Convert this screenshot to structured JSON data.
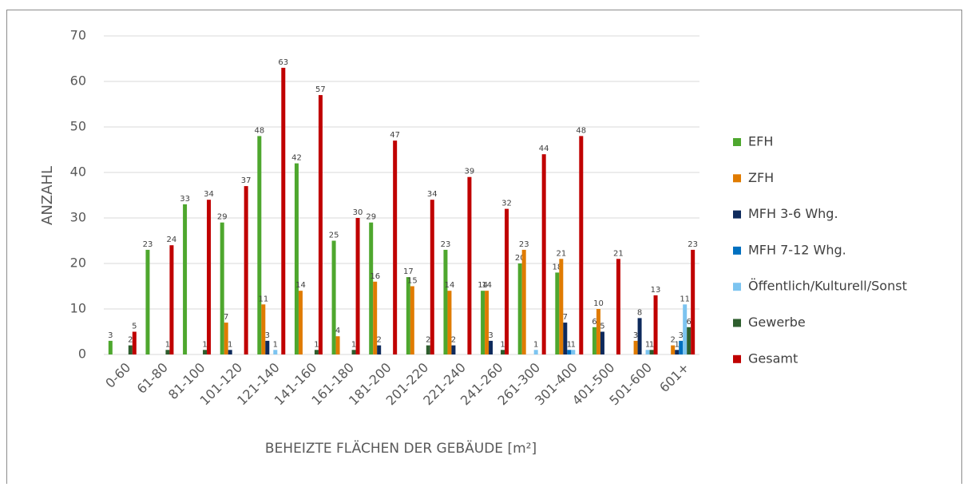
{
  "chart_data": {
    "type": "bar",
    "ylabel": "ANZAHL",
    "xlabel": "BEHEIZTE FLÄCHEN DER GEBÄUDE [m²]",
    "categories": [
      "0-60",
      "61-80",
      "81-100",
      "101-120",
      "121-140",
      "141-160",
      "161-180",
      "181-200",
      "201-220",
      "221-240",
      "241-260",
      "261-300",
      "301-400",
      "401-500",
      "501-600",
      "601+"
    ],
    "series": [
      {
        "name": "EFH",
        "color": "#4ea72e",
        "values": [
          3,
          23,
          33,
          29,
          48,
          42,
          25,
          29,
          17,
          23,
          14,
          20,
          18,
          6,
          0,
          0
        ]
      },
      {
        "name": "ZFH",
        "color": "#e07b00",
        "values": [
          0,
          0,
          0,
          7,
          11,
          14,
          4,
          16,
          15,
          14,
          14,
          23,
          21,
          10,
          3,
          2
        ]
      },
      {
        "name": "MFH 3-6 Whg.",
        "color": "#0e2a5c",
        "values": [
          0,
          0,
          0,
          1,
          3,
          0,
          0,
          2,
          0,
          2,
          3,
          0,
          7,
          5,
          8,
          1
        ]
      },
      {
        "name": "MFH 7-12 Whg.",
        "color": "#0070c0",
        "values": [
          0,
          0,
          0,
          0,
          0,
          0,
          0,
          0,
          0,
          0,
          0,
          0,
          1,
          0,
          0,
          3
        ]
      },
      {
        "name": "Öffentlich/Kulturell/Sonst",
        "color": "#7cc4f0",
        "values": [
          0,
          0,
          0,
          0,
          1,
          0,
          0,
          0,
          0,
          0,
          0,
          1,
          1,
          0,
          1,
          11
        ]
      },
      {
        "name": "Gewerbe",
        "color": "#2e5e2e",
        "values": [
          2,
          1,
          1,
          0,
          0,
          1,
          1,
          0,
          2,
          0,
          1,
          0,
          0,
          0,
          1,
          6
        ]
      },
      {
        "name": "Gesamt",
        "color": "#c00000",
        "values": [
          5,
          24,
          34,
          37,
          63,
          57,
          30,
          47,
          34,
          39,
          32,
          44,
          48,
          21,
          13,
          23
        ]
      }
    ],
    "ylim": [
      0,
      70
    ],
    "yticks": [
      0,
      10,
      20,
      30,
      40,
      50,
      60,
      70
    ],
    "grid": true,
    "legend": "right"
  }
}
